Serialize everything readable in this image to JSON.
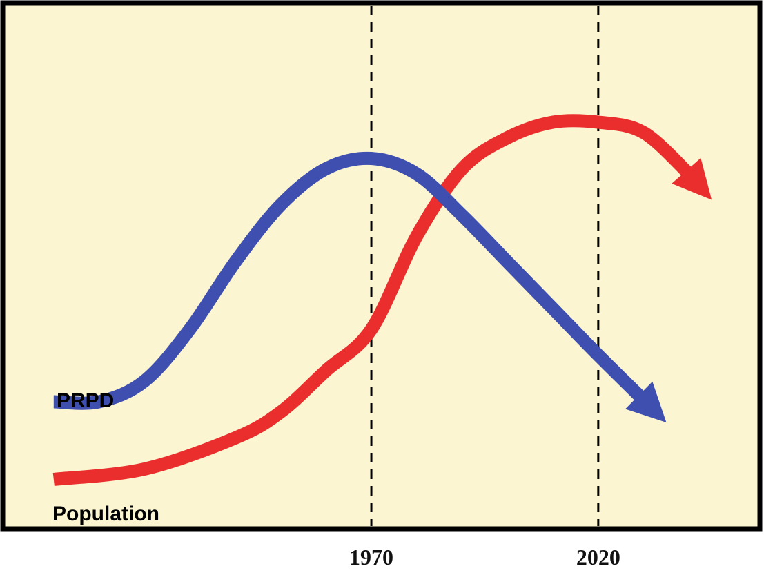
{
  "chart_data": {
    "type": "line",
    "title": "",
    "xlabel": "",
    "ylabel": "",
    "grid": false,
    "legend": "none",
    "x_ticks": [
      "1970",
      "2020"
    ],
    "x_tick_values": [
      1970,
      2020
    ],
    "x_range": [
      1890,
      2055
    ],
    "y_range": [
      0,
      100
    ],
    "reference_lines": [
      {
        "x": 1970,
        "style": "dashed"
      },
      {
        "x": 2020,
        "style": "dashed"
      }
    ],
    "series": [
      {
        "name": "PRPD",
        "color": "#3f4fb0",
        "end_marker": "arrow",
        "points": [
          [
            1900,
            24
          ],
          [
            1910,
            24
          ],
          [
            1920,
            28
          ],
          [
            1930,
            38
          ],
          [
            1940,
            51
          ],
          [
            1950,
            62
          ],
          [
            1960,
            69
          ],
          [
            1970,
            71
          ],
          [
            1980,
            68
          ],
          [
            1990,
            60
          ],
          [
            2000,
            51
          ],
          [
            2010,
            42
          ],
          [
            2020,
            33
          ],
          [
            2035,
            20
          ]
        ]
      },
      {
        "name": "Population",
        "color": "#ea2e2e",
        "end_marker": "arrow",
        "points": [
          [
            1900,
            9
          ],
          [
            1920,
            11
          ],
          [
            1940,
            17
          ],
          [
            1950,
            22
          ],
          [
            1960,
            30
          ],
          [
            1970,
            38
          ],
          [
            1980,
            56
          ],
          [
            1990,
            69
          ],
          [
            2000,
            75
          ],
          [
            2010,
            78
          ],
          [
            2020,
            78
          ],
          [
            2030,
            76
          ],
          [
            2040,
            68
          ],
          [
            2045,
            63
          ]
        ]
      }
    ],
    "colors": {
      "background": "#fbf5d2",
      "frame": "#000000"
    }
  }
}
